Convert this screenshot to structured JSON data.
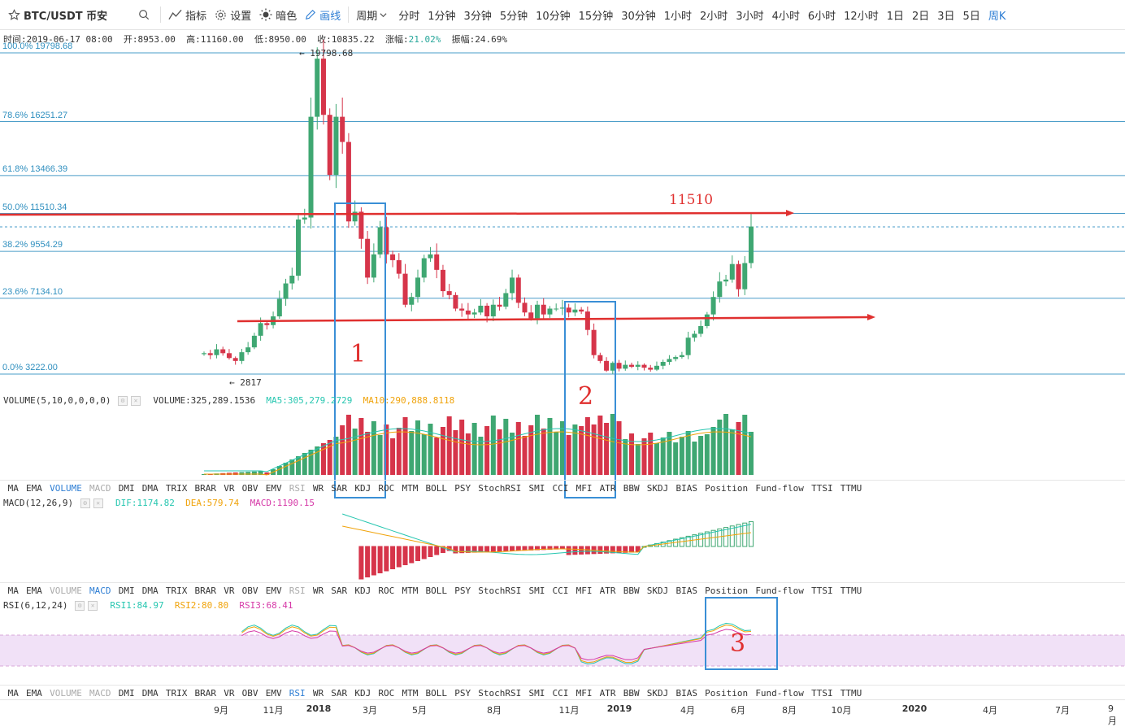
{
  "toolbar": {
    "symbol": "BTC/USDT 币安",
    "indicators": "指标",
    "settings": "设置",
    "theme": "暗色",
    "draw": "画线",
    "period": "周期",
    "periods": [
      "分时",
      "1分钟",
      "3分钟",
      "5分钟",
      "10分钟",
      "15分钟",
      "30分钟",
      "1小时",
      "2小时",
      "3小时",
      "4小时",
      "6小时",
      "12小时",
      "1日",
      "2日",
      "3日",
      "5日",
      "周K"
    ],
    "active_period": "周K"
  },
  "info": {
    "time": "时间:2019-06-17 08:00",
    "open": "开:8953.00",
    "high": "高:11160.00",
    "low": "低:8950.00",
    "close": "收:10835.22",
    "change_label": "涨幅:",
    "change": "21.02%",
    "amplitude": "振幅:24.69%"
  },
  "fib_levels": [
    {
      "label": "100.0% 19798.68",
      "value": 19798.68
    },
    {
      "label": "78.6% 16251.27",
      "value": 16251.27
    },
    {
      "label": "61.8% 13466.39",
      "value": 13466.39
    },
    {
      "label": "50.0% 11510.34",
      "value": 11510.34
    },
    {
      "label": "38.2% 9554.29",
      "value": 9554.29
    },
    {
      "label": "23.6% 7134.10",
      "value": 7134.1
    },
    {
      "label": "0.0% 3222.00",
      "value": 3222.0
    }
  ],
  "price_notes": {
    "high": "← 19798.68",
    "low": "← 2817"
  },
  "annotations": {
    "resistance": "11510",
    "box1": "1",
    "box2": "2",
    "box3": "3"
  },
  "volume_pane": {
    "title": "VOLUME(5,10,0,0,0,0)",
    "value": "VOLUME:325,289.1536",
    "ma5": "MA5:305,279.2729",
    "ma10": "MA10:290,888.8118",
    "ma5_color": "#26c6b0",
    "ma10_color": "#f0a30a"
  },
  "macd_pane": {
    "title": "MACD(12,26,9)",
    "dif": "DIF:1174.82",
    "dea": "DEA:579.74",
    "macd": "MACD:1190.15",
    "dif_color": "#26c6b0",
    "dea_color": "#f0a30a",
    "macd_color": "#d63aa8"
  },
  "rsi_pane": {
    "title": "RSI(6,12,24)",
    "rsi1": "RSI1:84.97",
    "rsi2": "RSI2:80.80",
    "rsi3": "RSI3:68.41",
    "rsi1_color": "#26c6b0",
    "rsi2_color": "#f0a30a",
    "rsi3_color": "#d63aa8"
  },
  "indicator_tabs": [
    "MA",
    "EMA",
    "VOLUME",
    "MACD",
    "DMI",
    "DMA",
    "TRIX",
    "BRAR",
    "VR",
    "OBV",
    "EMV",
    "RSI",
    "WR",
    "SAR",
    "KDJ",
    "ROC",
    "MTM",
    "BOLL",
    "PSY",
    "StochRSI",
    "SMI",
    "CCI",
    "MFI",
    "ATR",
    "BBW",
    "SKDJ",
    "BIAS",
    "Position",
    "Fund-flow",
    "TTSI",
    "TTMU"
  ],
  "x_axis": [
    "9月",
    "11月",
    "2018",
    "3月",
    "5月",
    "8月",
    "11月",
    "2019",
    "4月",
    "6月",
    "8月",
    "10月",
    "2020",
    "4月",
    "7月",
    "9月"
  ],
  "colors": {
    "up": "#3fa772",
    "down": "#d6354a",
    "fib": "#4a9cc8",
    "arrow": "#e0302f",
    "box": "#3a8fd6",
    "accent": "#2e7ed4"
  }
}
